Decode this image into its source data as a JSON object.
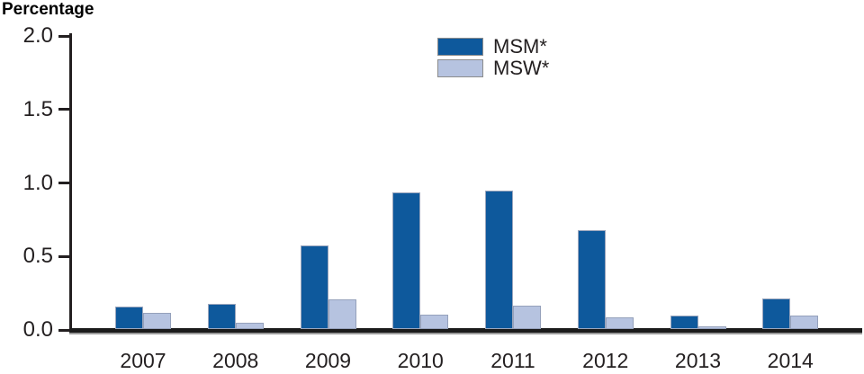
{
  "title": "Percentage",
  "colors": {
    "msm_fill": "#0e599c",
    "msw_fill": "#b6c3e0",
    "axis": "#231f20",
    "baseline": "#1b1b1b",
    "text": "#231f20",
    "bar_border_dark": "#9ba6bd",
    "bar_border_light": "#95a1bb",
    "legend_swatch_border": "#8c8c8c"
  },
  "chart_data": {
    "type": "bar",
    "title": "Percentage",
    "xlabel": "",
    "ylabel": "Percentage",
    "ylim": [
      0,
      2.0
    ],
    "yticks": [
      "2.0",
      "1.5",
      "1.0",
      "0.5",
      "0.0"
    ],
    "grid": false,
    "legend_position": "top-center",
    "categories": [
      "2007",
      "2008",
      "2009",
      "2010",
      "2011",
      "2012",
      "2013",
      "2014"
    ],
    "series": [
      {
        "name": "MSM*",
        "color": "#0e599c",
        "values": [
          0.15,
          0.17,
          0.57,
          0.93,
          0.94,
          0.67,
          0.09,
          0.21
        ]
      },
      {
        "name": "MSW*",
        "color": "#b6c3e0",
        "values": [
          0.11,
          0.04,
          0.2,
          0.1,
          0.16,
          0.08,
          0.02,
          0.09
        ]
      }
    ]
  }
}
